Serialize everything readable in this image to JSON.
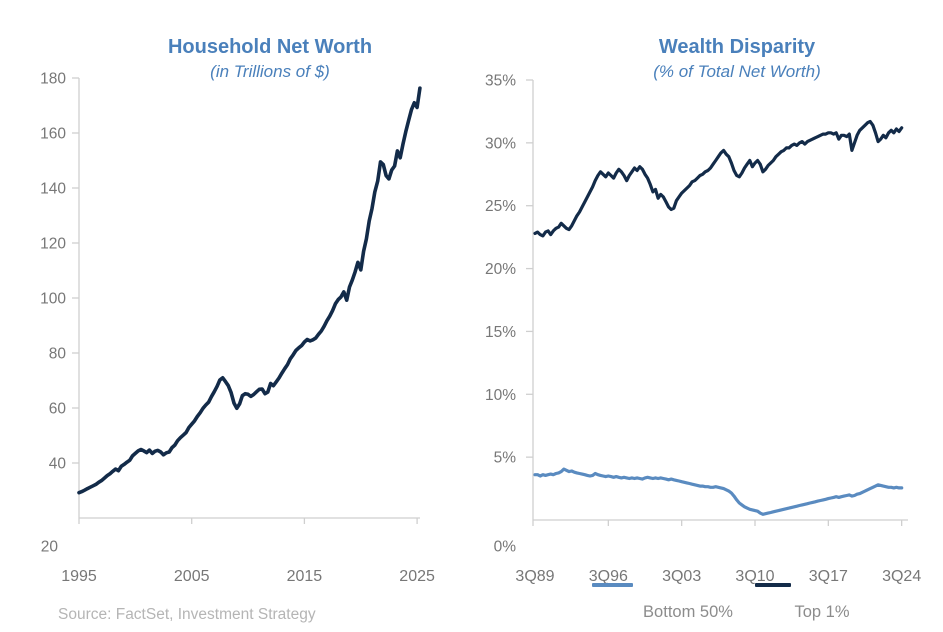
{
  "page": {
    "background": "#ffffff"
  },
  "colors": {
    "title_blue": "#4a80bb",
    "navy_line": "#132b49",
    "light_blue_line": "#5a8bc0",
    "axis_line": "#cfcfcf",
    "tick_label_gray": "#777777",
    "legend_text_gray": "#8c8c8c",
    "source_gray": "#b5b5b5"
  },
  "source_note": "Source: FactSet, Investment Strategy",
  "chart_data": [
    {
      "type": "line",
      "title": "Household Net Worth",
      "subtitle": "(in Trillions of $)",
      "xlabel": "",
      "ylabel": "",
      "ylim": [
        20,
        180
      ],
      "y_ticks": [
        20,
        40,
        60,
        80,
        100,
        120,
        140,
        160,
        180
      ],
      "y_tick_suffix": "",
      "x_tick_labels": [
        "1995",
        "2005",
        "2015",
        "2025"
      ],
      "x_tick_offsets_years": [
        0,
        10,
        20,
        30
      ],
      "grid": false,
      "legend_position": "none",
      "series": [
        {
          "name": "Household Net Worth",
          "color": "#132b49",
          "x_start": 1995.0,
          "x_step": 0.25,
          "values": [
            29.2,
            29.6,
            30.1,
            30.7,
            31.2,
            31.7,
            32.2,
            33.0,
            33.6,
            34.5,
            35.4,
            36.1,
            37.0,
            37.8,
            37.2,
            38.8,
            39.5,
            40.3,
            41.0,
            42.6,
            43.5,
            44.4,
            44.9,
            44.4,
            43.8,
            44.7,
            43.5,
            44.3,
            44.6,
            44.0,
            43.0,
            43.7,
            44.0,
            45.6,
            46.5,
            48.1,
            49.2,
            50.1,
            51.1,
            52.9,
            54.1,
            55.3,
            56.9,
            58.3,
            59.9,
            61.1,
            62.1,
            64.1,
            65.9,
            67.9,
            70.2,
            71.0,
            69.6,
            68.1,
            65.6,
            61.8,
            59.9,
            61.5,
            64.5,
            65.2,
            65.0,
            64.2,
            64.9,
            65.9,
            66.8,
            66.9,
            65.2,
            65.8,
            68.9,
            68.1,
            69.5,
            70.9,
            72.7,
            74.3,
            75.8,
            77.9,
            79.3,
            80.9,
            81.9,
            82.7,
            84.0,
            84.9,
            84.4,
            84.8,
            85.4,
            86.8,
            88.0,
            89.7,
            91.7,
            93.4,
            95.4,
            97.9,
            99.4,
            100.4,
            102.2,
            99.2,
            104.0,
            106.5,
            109.5,
            113.0,
            110.2,
            117.0,
            121.5,
            128.0,
            132.5,
            138.5,
            142.5,
            149.5,
            148.5,
            144.5,
            143.3,
            146.5,
            148.0,
            153.5,
            151.0,
            156.0,
            160.5,
            164.5,
            168.5,
            171.0,
            169.3,
            176.3
          ]
        }
      ]
    },
    {
      "type": "line",
      "title": "Wealth Disparity",
      "subtitle": "(% of Total Net Worth)",
      "xlabel": "",
      "ylabel": "",
      "ylim": [
        0,
        35
      ],
      "y_ticks": [
        0,
        5,
        10,
        15,
        20,
        25,
        30,
        35
      ],
      "y_tick_suffix": "%",
      "x_tick_labels": [
        "3Q89",
        "3Q96",
        "3Q03",
        "3Q10",
        "3Q17",
        "3Q24"
      ],
      "x_tick_offsets_years": [
        0,
        7,
        14,
        21,
        28,
        35
      ],
      "grid": false,
      "legend_position": "bottom",
      "legend": [
        {
          "label": "Bottom 50%",
          "color": "#5a8bc0"
        },
        {
          "label": "Top 1%",
          "color": "#132b49"
        }
      ],
      "series": [
        {
          "name": "Bottom 50%",
          "color": "#5a8bc0",
          "x_start": 1989.75,
          "x_step": 0.25,
          "values": [
            3.6,
            3.6,
            3.5,
            3.6,
            3.55,
            3.6,
            3.65,
            3.6,
            3.7,
            3.75,
            3.85,
            4.05,
            3.95,
            3.85,
            3.9,
            3.8,
            3.75,
            3.7,
            3.65,
            3.6,
            3.55,
            3.5,
            3.55,
            3.7,
            3.6,
            3.55,
            3.5,
            3.45,
            3.5,
            3.45,
            3.4,
            3.45,
            3.4,
            3.35,
            3.4,
            3.35,
            3.3,
            3.35,
            3.3,
            3.35,
            3.3,
            3.25,
            3.35,
            3.4,
            3.35,
            3.3,
            3.35,
            3.3,
            3.35,
            3.3,
            3.25,
            3.2,
            3.25,
            3.2,
            3.15,
            3.1,
            3.05,
            3.0,
            2.95,
            2.9,
            2.85,
            2.8,
            2.75,
            2.7,
            2.7,
            2.65,
            2.65,
            2.6,
            2.6,
            2.65,
            2.6,
            2.55,
            2.5,
            2.4,
            2.3,
            2.15,
            1.9,
            1.6,
            1.35,
            1.2,
            1.05,
            0.95,
            0.85,
            0.8,
            0.75,
            0.7,
            0.55,
            0.45,
            0.5,
            0.55,
            0.6,
            0.65,
            0.7,
            0.75,
            0.8,
            0.85,
            0.9,
            0.95,
            1.0,
            1.05,
            1.1,
            1.15,
            1.2,
            1.25,
            1.3,
            1.35,
            1.4,
            1.45,
            1.5,
            1.55,
            1.6,
            1.65,
            1.7,
            1.75,
            1.8,
            1.85,
            1.8,
            1.85,
            1.9,
            1.95,
            2.0,
            1.9,
            1.95,
            2.05,
            2.1,
            2.2,
            2.3,
            2.4,
            2.5,
            2.6,
            2.7,
            2.8,
            2.75,
            2.7,
            2.65,
            2.6,
            2.6,
            2.55,
            2.6,
            2.55,
            2.55
          ]
        },
        {
          "name": "Top 1%",
          "color": "#132b49",
          "x_start": 1989.75,
          "x_step": 0.25,
          "values": [
            22.8,
            22.9,
            22.7,
            22.6,
            22.9,
            23.0,
            22.7,
            23.0,
            23.2,
            23.3,
            23.6,
            23.4,
            23.2,
            23.1,
            23.4,
            23.8,
            24.2,
            24.5,
            24.9,
            25.3,
            25.7,
            26.1,
            26.5,
            27.0,
            27.4,
            27.7,
            27.5,
            27.3,
            27.6,
            27.4,
            27.2,
            27.6,
            27.9,
            27.7,
            27.4,
            27.0,
            27.4,
            27.7,
            28.0,
            27.8,
            28.1,
            27.9,
            27.5,
            27.2,
            26.7,
            26.1,
            26.3,
            25.6,
            25.9,
            25.7,
            25.3,
            24.9,
            24.7,
            24.8,
            25.4,
            25.7,
            26.0,
            26.2,
            26.4,
            26.6,
            26.9,
            27.0,
            27.2,
            27.4,
            27.5,
            27.7,
            27.8,
            28.0,
            28.3,
            28.6,
            28.9,
            29.2,
            29.4,
            29.1,
            28.9,
            28.4,
            27.8,
            27.4,
            27.3,
            27.6,
            28.0,
            28.3,
            28.6,
            28.1,
            28.4,
            28.6,
            28.3,
            27.7,
            27.9,
            28.2,
            28.4,
            28.6,
            28.9,
            29.1,
            29.3,
            29.4,
            29.6,
            29.6,
            29.8,
            29.9,
            29.8,
            30.0,
            30.1,
            29.9,
            30.1,
            30.2,
            30.3,
            30.4,
            30.5,
            30.6,
            30.7,
            30.7,
            30.8,
            30.8,
            30.7,
            30.8,
            30.3,
            30.6,
            30.6,
            30.5,
            30.7,
            29.4,
            30.0,
            30.6,
            31.0,
            31.2,
            31.4,
            31.6,
            31.7,
            31.4,
            30.8,
            30.1,
            30.3,
            30.6,
            30.4,
            30.8,
            31.0,
            30.8,
            31.1,
            30.9,
            31.2
          ]
        }
      ]
    }
  ]
}
